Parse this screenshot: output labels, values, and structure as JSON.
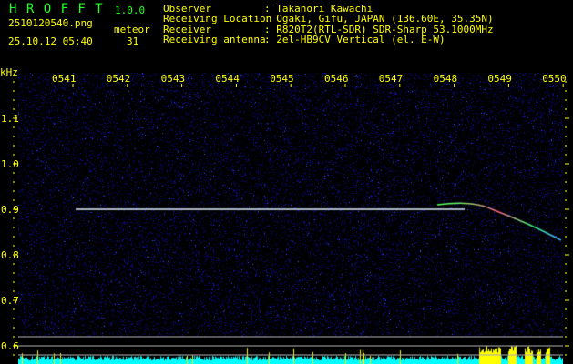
{
  "header": {
    "app_name": "H R O F F T",
    "version": "1.0.0",
    "filename": "2510120540.png",
    "datetime": "25.10.12 05:40",
    "meteor_label": "meteor",
    "meteor_count": "31"
  },
  "info": [
    {
      "label": "Observer",
      "value": ": Takanori Kawachi"
    },
    {
      "label": "Receiving Location",
      "value": ": Ogaki, Gifu, JAPAN (136.60E, 35.35N)"
    },
    {
      "label": "Receiver",
      "value": ": R820T2(RTL-SDR) SDR-Sharp 53.1000MHz"
    },
    {
      "label": "Receiving antenna",
      "value": ": 2el-HB9CV Vertical (el. E-W)"
    }
  ],
  "axis": {
    "unit": "kHz",
    "x_ticks": [
      "0541",
      "0542",
      "0543",
      "0544",
      "0545",
      "0546",
      "0547",
      "0548",
      "0549",
      "0550"
    ],
    "y_ticks": [
      "1.1",
      "1.0",
      "0.9",
      "0.8",
      "0.7",
      "0.6"
    ]
  },
  "colors": {
    "text": "#ffff00",
    "title": "#22ff22",
    "background": "#000080",
    "signal": "#ffffff",
    "level": "#00ffff",
    "meteor_level": "#ffff00"
  }
}
